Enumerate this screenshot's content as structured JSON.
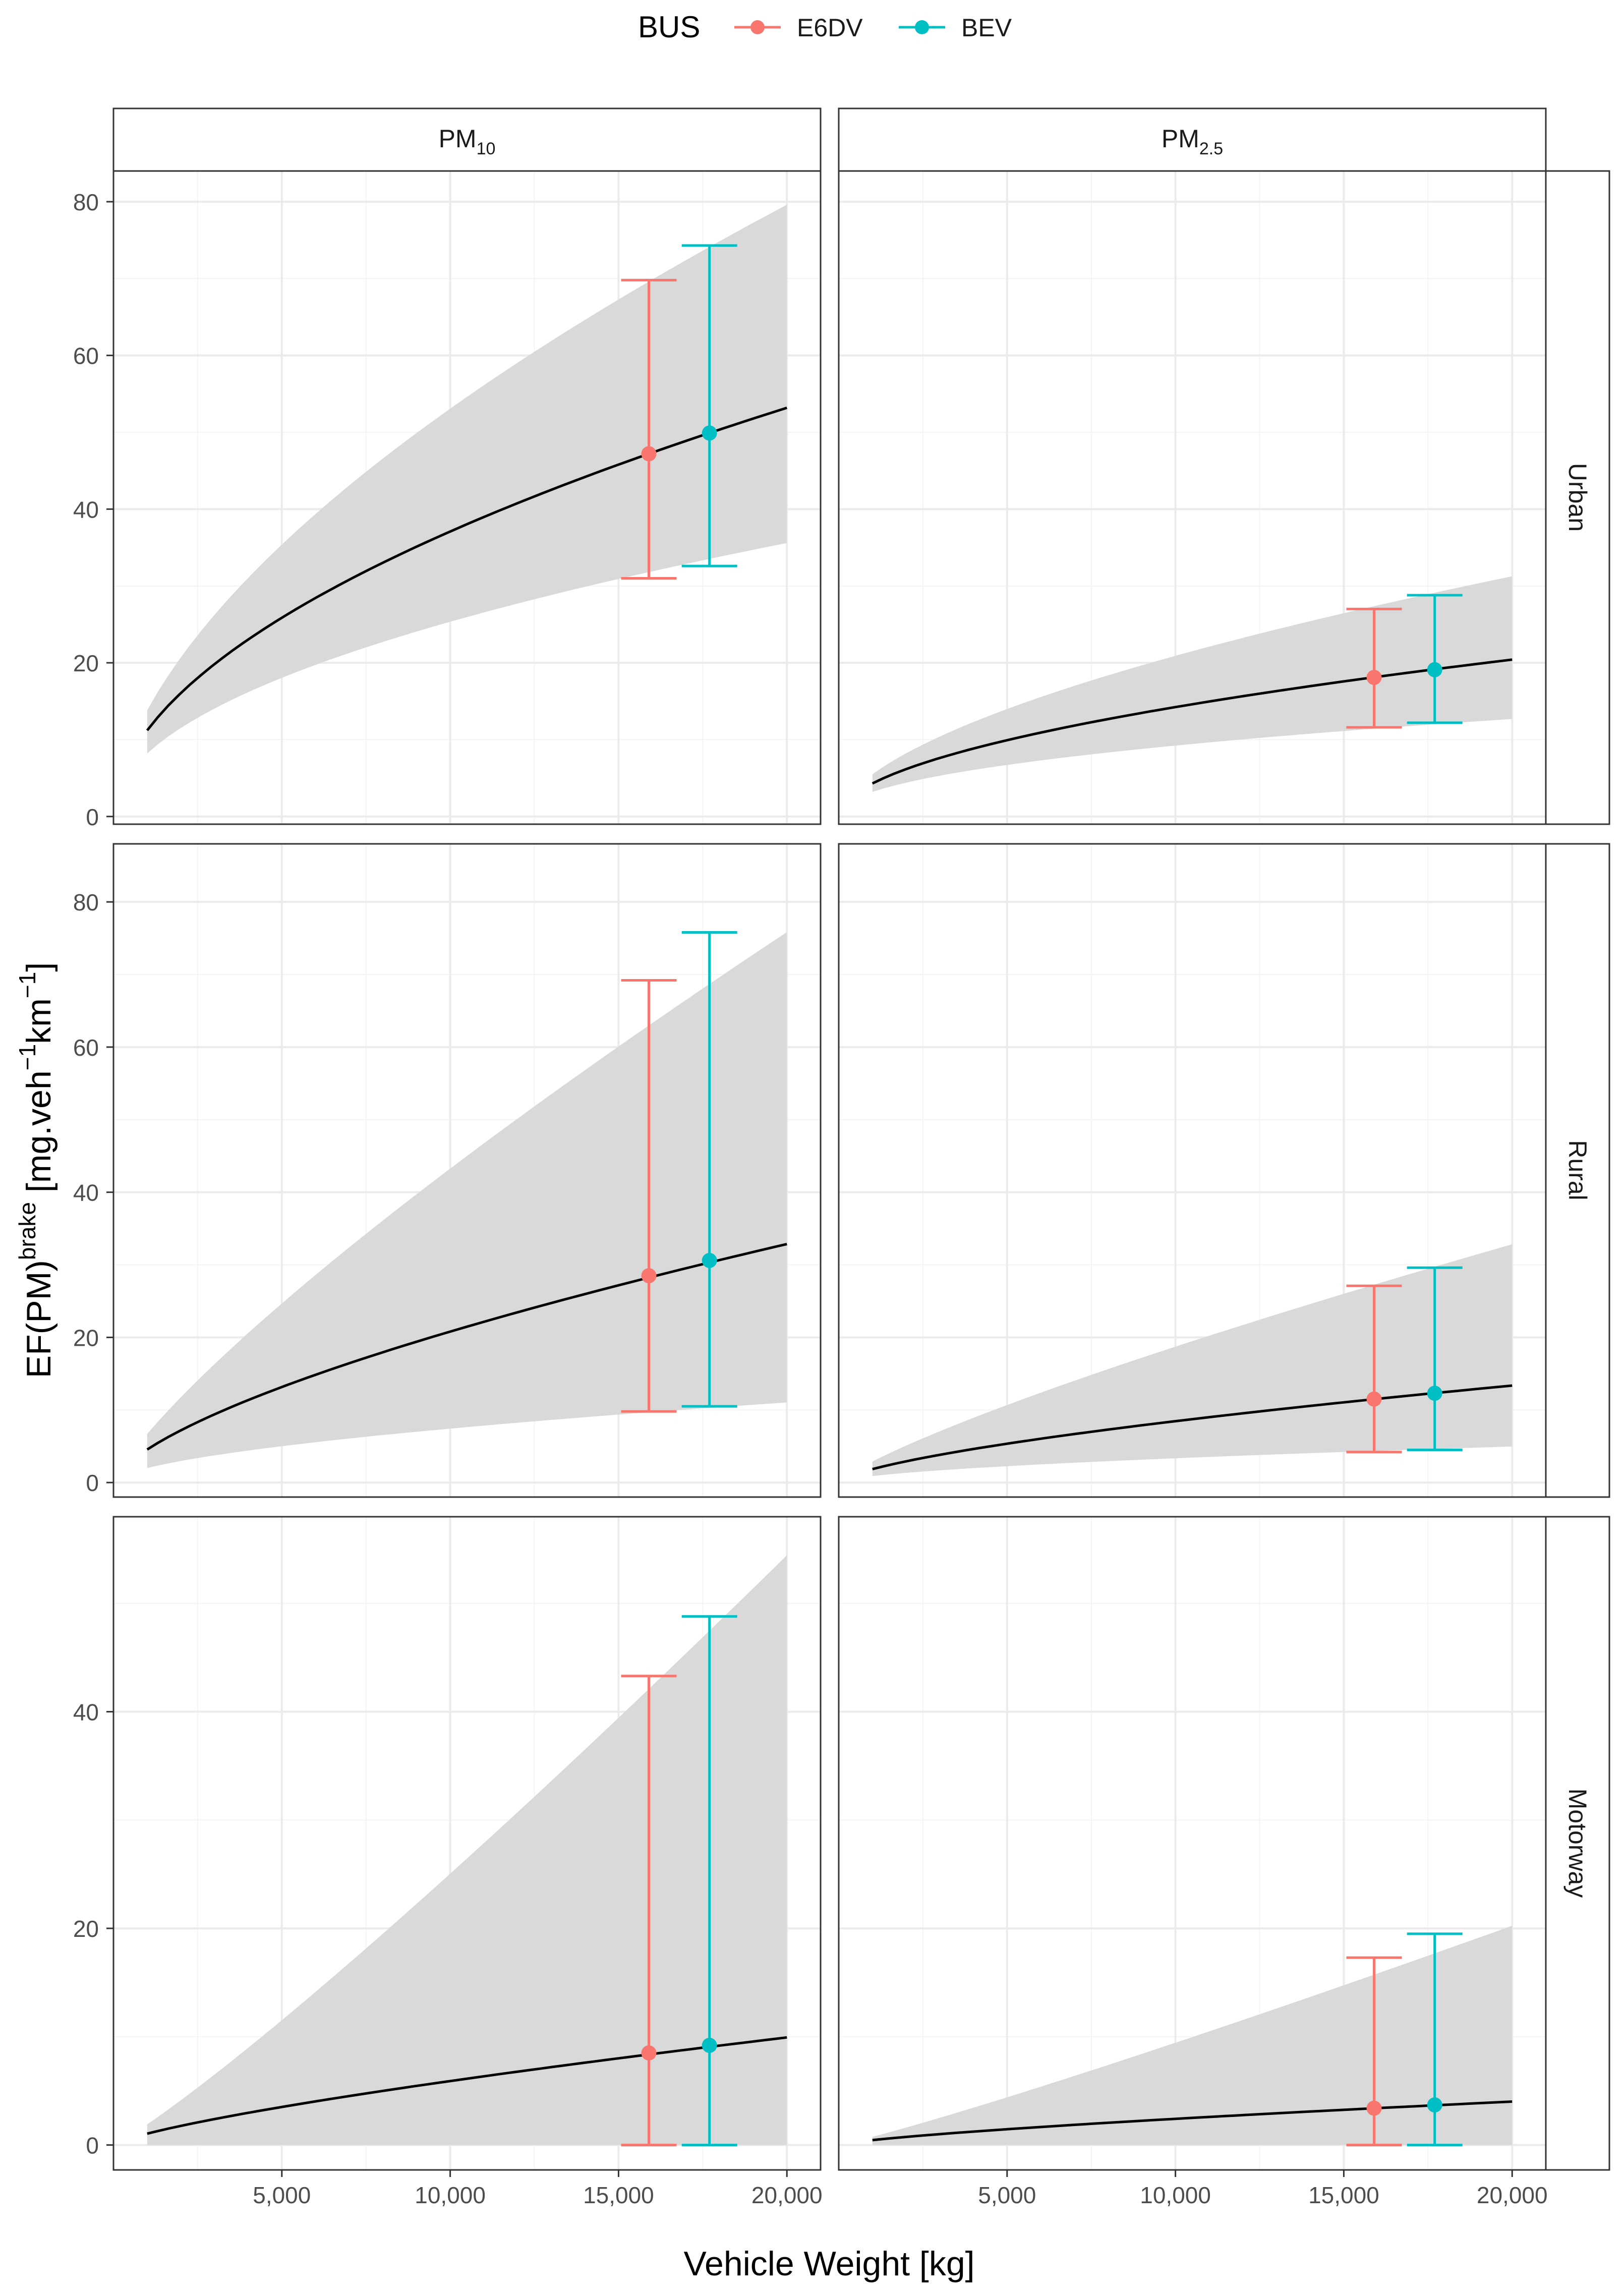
{
  "legend": {
    "title": "BUS",
    "entries": [
      {
        "label": "E6DV",
        "color": "#F8766D"
      },
      {
        "label": "BEV",
        "color": "#00BFC4"
      }
    ]
  },
  "axes": {
    "xlabel": "Vehicle Weight [kg]",
    "ylabel_main": "EF(PM)",
    "ylabel_sup": "brake",
    "ylabel_units_open": " [mg.veh",
    "ylabel_units_sup1": "−1",
    "ylabel_units_mid": "km",
    "ylabel_units_sup2": "−1",
    "ylabel_units_close": "]"
  },
  "facets": {
    "columns": [
      {
        "base": "PM",
        "sub": "10"
      },
      {
        "base": "PM",
        "sub": "2.5"
      }
    ],
    "rows": [
      "Urban",
      "Rural",
      "Motorway"
    ]
  },
  "colors": {
    "band": "#d9d9d9",
    "line": "#000000",
    "grid_major": "#ebebeb",
    "grid_minor": "#f4f4f4",
    "strip_bg": "#ffffff",
    "panel_border": "#333333"
  },
  "chart_data": {
    "type": "line",
    "x_range": [
      1000,
      20000
    ],
    "xlim": [
      0,
      21000
    ],
    "x_ticks": [
      5000,
      10000,
      15000,
      20000
    ],
    "x_tick_labels": [
      "5,000",
      "10,000",
      "15,000",
      "20,000"
    ],
    "series_names": [
      "E6DV",
      "BEV"
    ],
    "rows": [
      {
        "name": "Urban",
        "ylim": [
          -1,
          84
        ],
        "y_ticks": [
          0,
          20,
          40,
          60,
          80
        ],
        "y_tick_labels": [
          "0",
          "20",
          "40",
          "60",
          "80"
        ],
        "panels": [
          {
            "column": "PM10",
            "fit": {
              "a": 11.2,
              "b": 0.52
            },
            "band_lower": {
              "a": 8.2,
              "b": 0.49
            },
            "band_upper": {
              "a": 13.8,
              "b": 0.585
            },
            "points": [
              {
                "series": "E6DV",
                "x": 15900,
                "y": 47.2,
                "lower": 31.0,
                "upper": 69.8
              },
              {
                "series": "BEV",
                "x": 17700,
                "y": 49.9,
                "lower": 32.6,
                "upper": 74.3
              }
            ]
          },
          {
            "column": "PM2.5",
            "fit": {
              "a": 4.3,
              "b": 0.52
            },
            "band_lower": {
              "a": 3.2,
              "b": 0.46
            },
            "band_upper": {
              "a": 5.5,
              "b": 0.58
            },
            "points": [
              {
                "series": "E6DV",
                "x": 15900,
                "y": 18.1,
                "lower": 11.6,
                "upper": 27.0
              },
              {
                "series": "BEV",
                "x": 17700,
                "y": 19.1,
                "lower": 12.2,
                "upper": 28.8
              }
            ]
          }
        ]
      },
      {
        "name": "Rural",
        "ylim": [
          -2,
          88
        ],
        "y_ticks": [
          0,
          20,
          40,
          60,
          80
        ],
        "y_tick_labels": [
          "0",
          "20",
          "40",
          "60",
          "80"
        ],
        "panels": [
          {
            "column": "PM10",
            "fit": {
              "a": 4.55,
              "b": 0.66
            },
            "band_lower": {
              "a": 2.0,
              "b": 0.57
            },
            "band_upper": {
              "a": 6.7,
              "b": 0.81
            },
            "points": [
              {
                "series": "E6DV",
                "x": 15900,
                "y": 28.5,
                "lower": 9.8,
                "upper": 69.2
              },
              {
                "series": "BEV",
                "x": 17700,
                "y": 30.6,
                "lower": 10.5,
                "upper": 75.8
              }
            ]
          },
          {
            "column": "PM2.5",
            "fit": {
              "a": 1.85,
              "b": 0.66
            },
            "band_lower": {
              "a": 0.9,
              "b": 0.57
            },
            "band_upper": {
              "a": 2.9,
              "b": 0.81
            },
            "points": [
              {
                "series": "E6DV",
                "x": 15900,
                "y": 11.5,
                "lower": 4.2,
                "upper": 27.1
              },
              {
                "series": "BEV",
                "x": 17700,
                "y": 12.3,
                "lower": 4.5,
                "upper": 29.6
              }
            ]
          }
        ]
      },
      {
        "name": "Motorway",
        "ylim": [
          -2.3,
          58
        ],
        "y_ticks": [
          0,
          20,
          40
        ],
        "y_tick_labels": [
          "0",
          "20",
          "40"
        ],
        "panels": [
          {
            "column": "PM10",
            "fit": {
              "a": 1.05,
              "b": 0.75
            },
            "band_lower": {
              "a": 0,
              "b": 0.5
            },
            "band_upper": {
              "a": 1.9,
              "b": 1.12
            },
            "points": [
              {
                "series": "E6DV",
                "x": 15900,
                "y": 8.5,
                "lower": 0,
                "upper": 43.3
              },
              {
                "series": "BEV",
                "x": 17700,
                "y": 9.2,
                "lower": 0,
                "upper": 48.8
              }
            ]
          },
          {
            "column": "PM2.5",
            "fit": {
              "a": 0.45,
              "b": 0.73
            },
            "band_lower": {
              "a": 0,
              "b": 0.5
            },
            "band_upper": {
              "a": 0.75,
              "b": 1.1
            },
            "points": [
              {
                "series": "E6DV",
                "x": 15900,
                "y": 3.4,
                "lower": 0,
                "upper": 17.3
              },
              {
                "series": "BEV",
                "x": 17700,
                "y": 3.7,
                "lower": 0,
                "upper": 19.5
              }
            ]
          }
        ]
      }
    ]
  }
}
